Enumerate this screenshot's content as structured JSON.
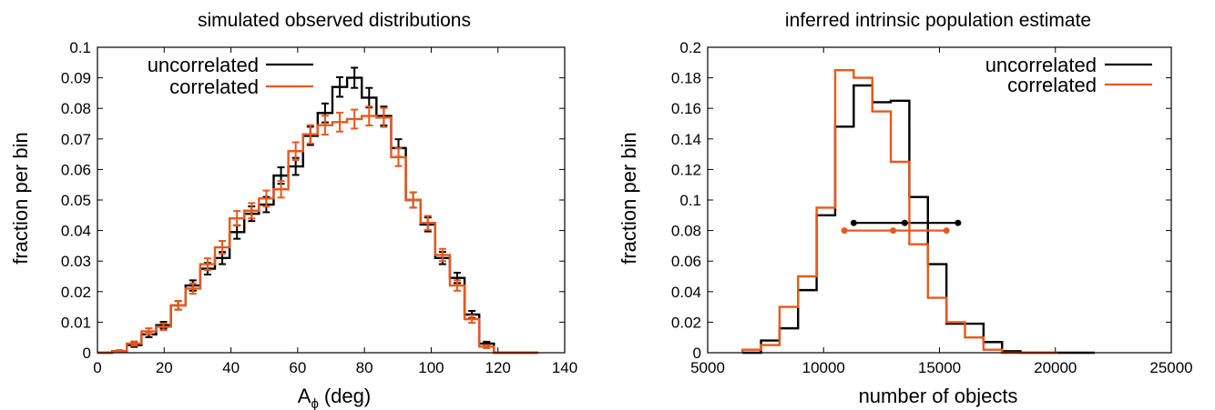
{
  "chart_data": [
    {
      "type": "histogram",
      "title": "simulated observed distributions",
      "xlabel": "A",
      "xlabel_sub": "ϕ",
      "xlabel_unit": "(deg)",
      "ylabel": "fraction per bin",
      "xlim": [
        0,
        140
      ],
      "ylim": [
        0,
        0.1
      ],
      "xticks": [
        "0",
        "20",
        "40",
        "60",
        "80",
        "100",
        "120",
        "140"
      ],
      "yticks": [
        "0",
        "0.01",
        "0.02",
        "0.03",
        "0.04",
        "0.05",
        "0.06",
        "0.07",
        "0.08",
        "0.09",
        "0.1"
      ],
      "xtick_values": [
        0,
        20,
        40,
        60,
        80,
        100,
        120,
        140
      ],
      "ytick_values": [
        0,
        0.01,
        0.02,
        0.03,
        0.04,
        0.05,
        0.06,
        0.07,
        0.08,
        0.09,
        0.1
      ],
      "legend_position": "top-left",
      "grid": false,
      "bin_edges": [
        0,
        4.4,
        8.8,
        13.2,
        17.6,
        22,
        26.4,
        30.8,
        35.2,
        39.6,
        44,
        48.4,
        52.8,
        57.2,
        61.6,
        66,
        70.4,
        74.8,
        79.2,
        83.6,
        88,
        92.4,
        96.8,
        101.2,
        105.6,
        110,
        114.4,
        118.8,
        123.2,
        127.6,
        132
      ],
      "series": [
        {
          "name": "uncorrelated",
          "color": "#000000",
          "values": [
            0.0,
            0.0005,
            0.0025,
            0.006,
            0.009,
            0.0155,
            0.022,
            0.0275,
            0.031,
            0.0395,
            0.0455,
            0.0485,
            0.058,
            0.061,
            0.071,
            0.0785,
            0.087,
            0.09,
            0.0835,
            0.0775,
            0.067,
            0.05,
            0.042,
            0.031,
            0.0245,
            0.0125,
            0.003,
            0.0,
            0.0,
            0.0
          ],
          "errors": [
            0.0,
            0.0003,
            0.0006,
            0.0009,
            0.0011,
            0.0014,
            0.0017,
            0.0019,
            0.002,
            0.0022,
            0.0024,
            0.0025,
            0.0027,
            0.0028,
            0.003,
            0.0031,
            0.0032,
            0.0033,
            0.0032,
            0.0031,
            0.0029,
            0.0025,
            0.0023,
            0.002,
            0.0017,
            0.0012,
            0.0006,
            0.0,
            0.0,
            0.0
          ]
        },
        {
          "name": "correlated",
          "color": "#e8581c",
          "values": [
            0.0,
            0.0005,
            0.003,
            0.007,
            0.0085,
            0.0155,
            0.021,
            0.029,
            0.0345,
            0.044,
            0.0465,
            0.0505,
            0.0535,
            0.066,
            0.0715,
            0.0745,
            0.0755,
            0.0765,
            0.0775,
            0.077,
            0.064,
            0.05,
            0.0425,
            0.032,
            0.022,
            0.011,
            0.002,
            0.0,
            0.0,
            0.0
          ],
          "errors": [
            0.0,
            0.0003,
            0.0007,
            0.001,
            0.0011,
            0.0014,
            0.0017,
            0.0019,
            0.0021,
            0.0024,
            0.0025,
            0.0026,
            0.0027,
            0.0029,
            0.003,
            0.0031,
            0.0031,
            0.0031,
            0.0031,
            0.0031,
            0.0029,
            0.0025,
            0.0023,
            0.002,
            0.0017,
            0.0012,
            0.0005,
            0.0,
            0.0,
            0.0
          ]
        }
      ]
    },
    {
      "type": "histogram",
      "title": "inferred intrinsic population estimate",
      "xlabel": "number of objects",
      "ylabel": "fraction per bin",
      "xlim": [
        5000,
        25000
      ],
      "ylim": [
        0,
        0.2
      ],
      "xticks": [
        "5000",
        "10000",
        "15000",
        "20000",
        "25000"
      ],
      "yticks": [
        "0",
        "0.02",
        "0.04",
        "0.06",
        "0.08",
        "0.1",
        "0.12",
        "0.14",
        "0.16",
        "0.18",
        "0.2"
      ],
      "xtick_values": [
        5000,
        10000,
        15000,
        20000,
        25000
      ],
      "ytick_values": [
        0,
        0.02,
        0.04,
        0.06,
        0.08,
        0.1,
        0.12,
        0.14,
        0.16,
        0.18,
        0.2
      ],
      "legend_position": "top-right",
      "grid": false,
      "series": [
        {
          "name": "uncorrelated",
          "color": "#000000",
          "bin_edges": [
            6500,
            7300,
            8100,
            8900,
            9700,
            10500,
            11300,
            12100,
            12900,
            13700,
            14500,
            15300,
            16100,
            16900,
            17700,
            18500,
            19300,
            20100,
            20900,
            21700
          ],
          "values": [
            0.0,
            0.008,
            0.016,
            0.041,
            0.09,
            0.148,
            0.175,
            0.164,
            0.165,
            0.102,
            0.058,
            0.019,
            0.019,
            0.007,
            0.001,
            0.0,
            0.0,
            0.0,
            0.0
          ],
          "summary": {
            "low": 11300,
            "center": 13500,
            "high": 15800,
            "y": 0.085
          }
        },
        {
          "name": "correlated",
          "color": "#e8581c",
          "bin_edges": [
            6500,
            7300,
            8100,
            8900,
            9700,
            10500,
            11300,
            12100,
            12900,
            13700,
            14500,
            15300,
            16100,
            16900,
            17700,
            18500,
            19300,
            20100
          ],
          "values": [
            0.002,
            0.005,
            0.03,
            0.05,
            0.095,
            0.185,
            0.18,
            0.158,
            0.125,
            0.071,
            0.036,
            0.02,
            0.01,
            0.002,
            0.0,
            0.0,
            0.0
          ],
          "summary": {
            "low": 10900,
            "center": 13000,
            "high": 15300,
            "y": 0.08
          }
        }
      ]
    }
  ]
}
